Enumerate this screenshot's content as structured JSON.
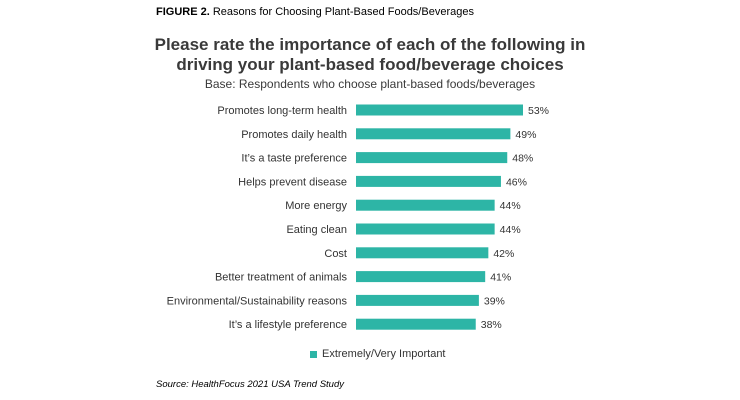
{
  "figure": {
    "number": "FIGURE 2.",
    "caption": "Reasons for Choosing Plant-Based Foods/Beverages"
  },
  "chart_title_line1": "Please rate the importance of each of the following in",
  "chart_title_line2": "driving your plant-based food/beverage choices",
  "base_note": "Base: Respondents who choose plant-based foods/beverages",
  "legend_label": "Extremely/Very Important",
  "source": "Source: HealthFocus 2021 USA Trend Study",
  "colors": {
    "bar": "#2db5a6",
    "text": "#333333"
  },
  "chart_data": {
    "type": "bar",
    "orientation": "horizontal",
    "categories": [
      "Promotes long-term health",
      "Promotes daily health",
      "It’s a taste preference",
      "Helps prevent disease",
      "More energy",
      "Eating clean",
      "Cost",
      "Better treatment of animals",
      "Environmental/Sustainability reasons",
      "It’s a lifestyle preference"
    ],
    "series": [
      {
        "name": "Extremely/Very Important",
        "values": [
          53,
          49,
          48,
          46,
          44,
          44,
          42,
          41,
          39,
          38
        ]
      }
    ],
    "value_labels": [
      "53%",
      "49%",
      "48%",
      "46%",
      "44%",
      "44%",
      "42%",
      "41%",
      "39%",
      "38%"
    ],
    "xlim": [
      0,
      53
    ],
    "grid": false,
    "legend_position": "bottom"
  }
}
